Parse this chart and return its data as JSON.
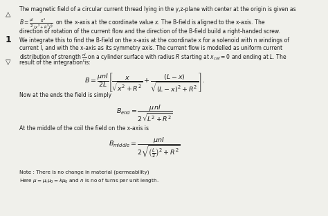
{
  "bg_color": "#f0f0eb",
  "text_color": "#1a1a1a",
  "title_text": "The magnetic field of a circular current thread lying in the y,z-plane with center at the origin is given as",
  "text3": "direction of rotation of the current flow and the direction of the B-field build a right-handed screw.",
  "text4": "We integrate this to find the B-field on the x-axis at the coordinate x for a solenoid with n windings of",
  "text5": "current I, and with the x-axis as its symmetry axis. The current flow is modelled as uniform current",
  "text7": "result of the integration is:",
  "text8": "Now at the ends the field is simply",
  "text9": "At the middle of the coil the field on the x-axis is",
  "note1": "Note : There is no change in material (permeability)",
  "number": "1"
}
